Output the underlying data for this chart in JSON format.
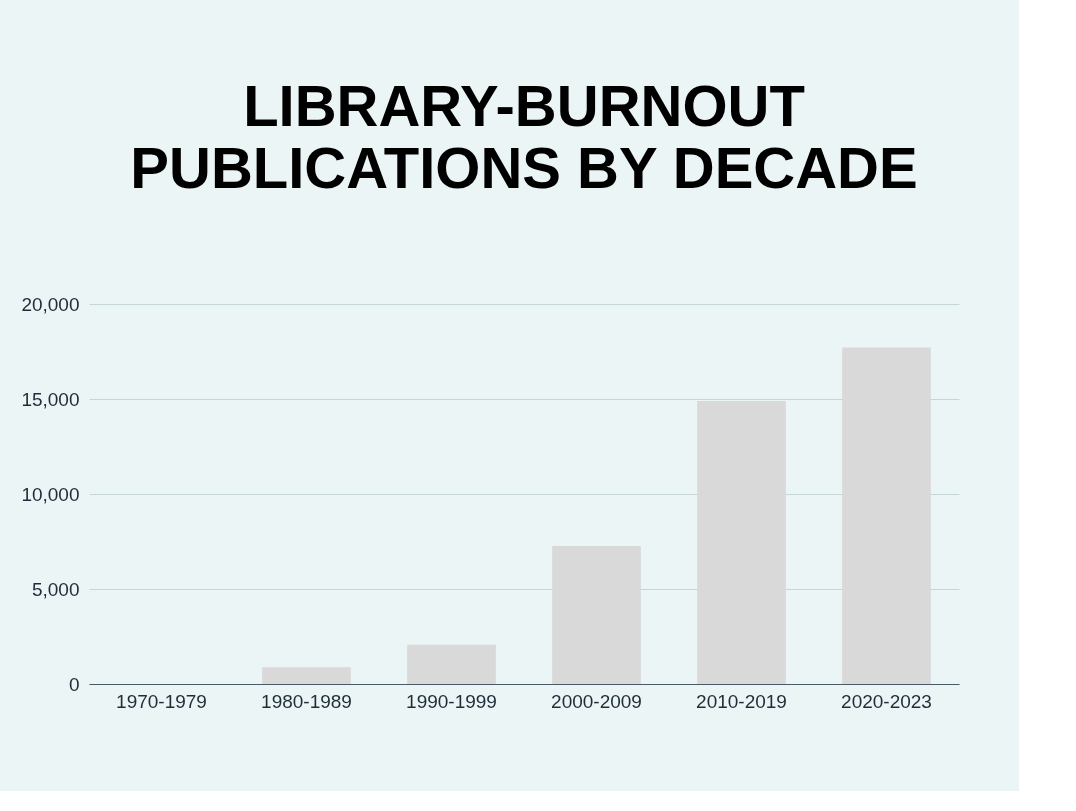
{
  "chart_data": {
    "type": "bar",
    "title": [
      "LIBRARY-BURNOUT",
      "PUBLICATIONS BY DECADE"
    ],
    "categories": [
      "1970-1979",
      "1980-1989",
      "1990-1999",
      "2000-2009",
      "2010-2019",
      "2020-2023"
    ],
    "values": [
      null,
      880,
      2060,
      7260,
      14900,
      17710
    ],
    "color": "#d9d9d9",
    "ylim": [
      0,
      20000
    ],
    "yticks": [
      {
        "value": 0,
        "label": "0"
      },
      {
        "value": 5000,
        "label": "5,000"
      },
      {
        "value": 10000,
        "label": "10,000"
      },
      {
        "value": 15000,
        "label": "15,000"
      },
      {
        "value": 20000,
        "label": "20,000"
      }
    ],
    "grid": "y"
  }
}
